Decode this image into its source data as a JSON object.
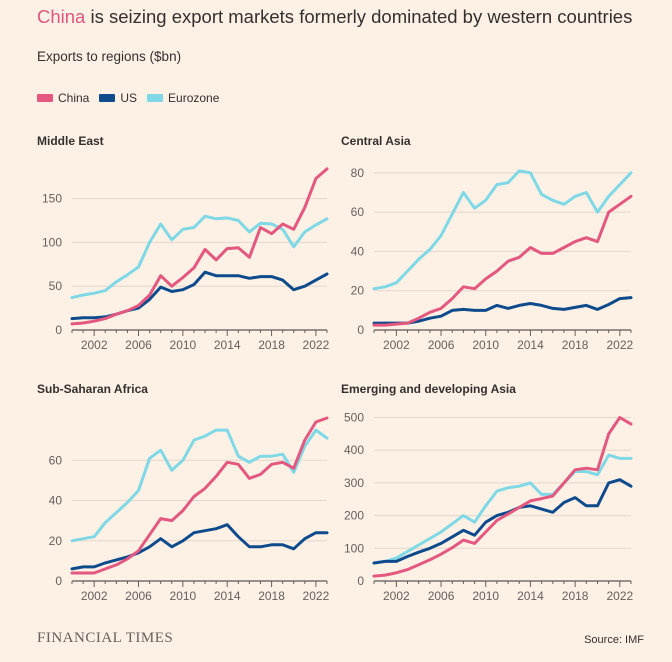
{
  "title": {
    "highlight": "China",
    "rest": " is seizing export markets formerly dominated by western countries"
  },
  "subtitle": "Exports to regions ($bn)",
  "colors": {
    "China": "#e4587f",
    "US": "#0e4b8c",
    "Eurozone": "#7fd8e5"
  },
  "legend": [
    {
      "name": "China",
      "color": "#e4587f"
    },
    {
      "name": "US",
      "color": "#0e4b8c"
    },
    {
      "name": "Eurozone",
      "color": "#7fd8e5"
    }
  ],
  "footer": {
    "logo": "FINANCIAL TIMES",
    "source": "Source: IMF"
  },
  "chart_data": [
    {
      "type": "line",
      "title": "Middle East",
      "x": [
        2000,
        2001,
        2002,
        2003,
        2004,
        2005,
        2006,
        2007,
        2008,
        2009,
        2010,
        2011,
        2012,
        2013,
        2014,
        2015,
        2016,
        2017,
        2018,
        2019,
        2020,
        2021,
        2022,
        2023
      ],
      "ylim": [
        0,
        185
      ],
      "yticks": [
        0,
        50,
        100,
        150
      ],
      "xticks": [
        2002,
        2006,
        2010,
        2014,
        2018,
        2022
      ],
      "series": [
        {
          "name": "Eurozone",
          "values": [
            37,
            40,
            42,
            45,
            55,
            63,
            72,
            100,
            121,
            103,
            115,
            117,
            130,
            127,
            128,
            125,
            112,
            122,
            121,
            115,
            95,
            112,
            120,
            127
          ]
        },
        {
          "name": "US",
          "values": [
            13,
            14,
            14,
            15,
            18,
            22,
            25,
            35,
            49,
            44,
            46,
            52,
            66,
            62,
            62,
            62,
            59,
            61,
            61,
            57,
            46,
            50,
            57,
            64
          ]
        },
        {
          "name": "China",
          "values": [
            7,
            8,
            10,
            13,
            18,
            22,
            28,
            40,
            62,
            50,
            60,
            71,
            92,
            80,
            93,
            94,
            83,
            117,
            110,
            121,
            115,
            140,
            173,
            184
          ]
        }
      ]
    },
    {
      "type": "line",
      "title": "Central Asia",
      "x": [
        2000,
        2001,
        2002,
        2003,
        2004,
        2005,
        2006,
        2007,
        2008,
        2009,
        2010,
        2011,
        2012,
        2013,
        2014,
        2015,
        2016,
        2017,
        2018,
        2019,
        2020,
        2021,
        2022,
        2023
      ],
      "ylim": [
        0,
        85
      ],
      "yticks": [
        0,
        20,
        40,
        60,
        80
      ],
      "xticks": [
        2002,
        2006,
        2010,
        2014,
        2018,
        2022
      ],
      "series": [
        {
          "name": "Eurozone",
          "values": [
            21,
            22,
            24,
            30,
            36,
            41,
            48,
            59,
            70,
            62,
            66,
            74,
            75,
            81,
            80,
            69,
            66,
            64,
            68,
            70,
            60,
            68,
            74,
            80
          ]
        },
        {
          "name": "US",
          "values": [
            3.5,
            3.5,
            3.5,
            3.5,
            4.5,
            6,
            7,
            10,
            10.5,
            10,
            10,
            12.5,
            11,
            12.5,
            13.5,
            12.5,
            11,
            10.5,
            11.5,
            12.5,
            10.5,
            13,
            16,
            16.5
          ]
        },
        {
          "name": "China",
          "values": [
            2.5,
            2.5,
            3,
            3.5,
            6,
            9,
            11,
            16,
            22,
            21,
            26,
            30,
            35,
            37,
            42,
            39,
            39,
            42,
            45,
            47,
            45,
            60,
            64,
            68
          ]
        }
      ]
    },
    {
      "type": "line",
      "title": "Sub-Saharan Africa",
      "x": [
        2000,
        2001,
        2002,
        2003,
        2004,
        2005,
        2006,
        2007,
        2008,
        2009,
        2010,
        2011,
        2012,
        2013,
        2014,
        2015,
        2016,
        2017,
        2018,
        2019,
        2020,
        2021,
        2022,
        2023
      ],
      "ylim": [
        0,
        82
      ],
      "yticks": [
        0,
        20,
        40,
        60
      ],
      "xticks": [
        2002,
        2006,
        2010,
        2014,
        2018,
        2022
      ],
      "series": [
        {
          "name": "Eurozone",
          "values": [
            20,
            21,
            22,
            29,
            34,
            39,
            45,
            61,
            65,
            55,
            60,
            70,
            72,
            75,
            75,
            62,
            59,
            62,
            62,
            63,
            54,
            67,
            75,
            71
          ]
        },
        {
          "name": "US",
          "values": [
            6,
            7,
            7,
            9,
            10.5,
            12,
            14,
            17,
            21,
            17,
            20,
            24,
            25,
            26,
            28,
            22,
            17,
            17,
            18,
            18,
            16,
            21,
            24,
            24
          ]
        },
        {
          "name": "China",
          "values": [
            4,
            4,
            4,
            6,
            8,
            11,
            15,
            23,
            31,
            30,
            35,
            42,
            46,
            52,
            59,
            58,
            51,
            53,
            58,
            59,
            56,
            70,
            79,
            81
          ]
        }
      ]
    },
    {
      "type": "line",
      "title": "Emerging and developing Asia",
      "x": [
        2000,
        2001,
        2002,
        2003,
        2004,
        2005,
        2006,
        2007,
        2008,
        2009,
        2010,
        2011,
        2012,
        2013,
        2014,
        2015,
        2016,
        2017,
        2018,
        2019,
        2020,
        2021,
        2022,
        2023
      ],
      "ylim": [
        0,
        520
      ],
      "yticks": [
        0,
        100,
        200,
        300,
        400,
        500
      ],
      "xticks": [
        2002,
        2006,
        2010,
        2014,
        2018,
        2022
      ],
      "series": [
        {
          "name": "Eurozone",
          "values": [
            55,
            60,
            70,
            90,
            110,
            130,
            150,
            175,
            200,
            180,
            230,
            275,
            285,
            290,
            300,
            265,
            265,
            300,
            335,
            335,
            325,
            385,
            375,
            375
          ]
        },
        {
          "name": "US",
          "values": [
            55,
            60,
            60,
            75,
            88,
            100,
            115,
            135,
            155,
            140,
            180,
            200,
            210,
            225,
            230,
            220,
            210,
            240,
            255,
            230,
            230,
            300,
            310,
            290
          ]
        },
        {
          "name": "China",
          "values": [
            15,
            18,
            25,
            35,
            50,
            65,
            82,
            102,
            125,
            115,
            150,
            185,
            205,
            225,
            245,
            252,
            260,
            300,
            340,
            345,
            340,
            450,
            500,
            480
          ]
        }
      ]
    }
  ]
}
